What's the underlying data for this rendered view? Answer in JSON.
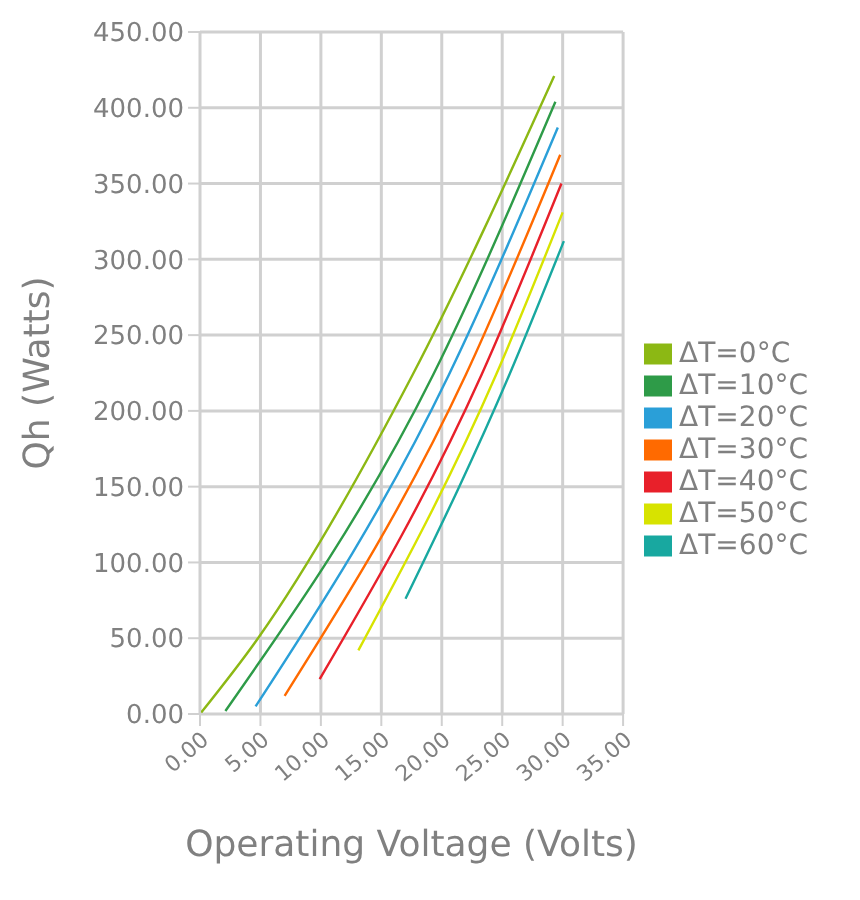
{
  "chart_data": {
    "type": "line",
    "xlabel": "Operating Voltage (Volts)",
    "ylabel": "Qh (Watts)",
    "xlim": [
      0,
      35
    ],
    "xticks": [
      {
        "value": 0,
        "label": "0.00"
      },
      {
        "value": 5,
        "label": "5.00"
      },
      {
        "value": 10,
        "label": "10.00"
      },
      {
        "value": 15,
        "label": "15.00"
      },
      {
        "value": 20,
        "label": "20.00"
      },
      {
        "value": 25,
        "label": "25.00"
      },
      {
        "value": 30,
        "label": "30.00"
      },
      {
        "value": 35,
        "label": "35.00"
      }
    ],
    "ylim": [
      0,
      450
    ],
    "yticks": [
      {
        "value": 0,
        "label": "0.00"
      },
      {
        "value": 50,
        "label": "50.00"
      },
      {
        "value": 100,
        "label": "100.00"
      },
      {
        "value": 150,
        "label": "150.00"
      },
      {
        "value": 200,
        "label": "200.00"
      },
      {
        "value": 250,
        "label": "250.00"
      },
      {
        "value": 300,
        "label": "300.00"
      },
      {
        "value": 350,
        "label": "350.00"
      },
      {
        "value": 400,
        "label": "400.00"
      },
      {
        "value": 450,
        "label": "450.00"
      }
    ],
    "grid": true,
    "legend": "right",
    "marker": "none",
    "series": [
      {
        "name": "ΔT=0°C",
        "color": "#8cb814",
        "x": [
          0.1,
          4.8,
          17.6,
          29.3
        ],
        "values": [
          1,
          50,
          224,
          421
        ]
      },
      {
        "name": "ΔT=10°C",
        "color": "#2e9b48",
        "x": [
          2.1,
          19.3,
          29.4
        ],
        "values": [
          2,
          224,
          404
        ]
      },
      {
        "name": "ΔT=20°C",
        "color": "#2a9fd8",
        "x": [
          4.6,
          20.6,
          29.6
        ],
        "values": [
          5,
          224,
          387
        ]
      },
      {
        "name": "ΔT=30°C",
        "color": "#ff6a00",
        "x": [
          7.0,
          22.0,
          29.8
        ],
        "values": [
          12,
          224,
          369
        ]
      },
      {
        "name": "ΔT=40°C",
        "color": "#e8202a",
        "x": [
          9.9,
          23.3,
          29.9
        ],
        "values": [
          23,
          224,
          350
        ]
      },
      {
        "name": "ΔT=50°C",
        "color": "#d7e300",
        "x": [
          13.1,
          24.5,
          30.0
        ],
        "values": [
          42,
          224,
          331
        ]
      },
      {
        "name": "ΔT=60°C",
        "color": "#18a8a0",
        "x": [
          17.0,
          25.6,
          30.1
        ],
        "values": [
          76,
          224,
          312
        ]
      }
    ]
  }
}
